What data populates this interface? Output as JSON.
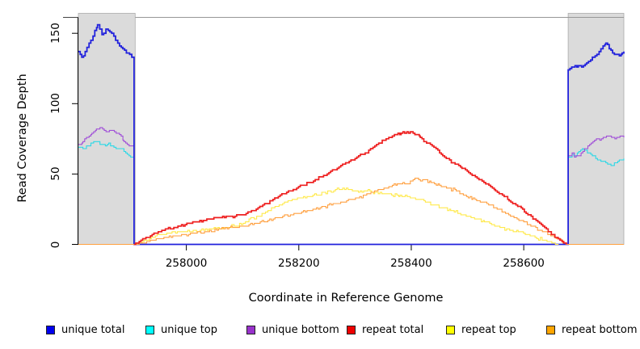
{
  "chart_data": {
    "type": "line",
    "title": "",
    "xlabel": "Coordinate in Reference Genome",
    "ylabel": "Read Coverage Depth",
    "x_ticks": [
      "258000",
      "258200",
      "258400",
      "258600"
    ],
    "x_tick_values": [
      258000,
      258200,
      258400,
      258600
    ],
    "y_ticks": [
      "0",
      "50",
      "100",
      "150"
    ],
    "y_tick_values": [
      0,
      50,
      100,
      150
    ],
    "xlim": [
      257808,
      258778
    ],
    "ylim": [
      0,
      164
    ],
    "grid": false,
    "legend_position": "bottom",
    "masked_regions": [
      {
        "start": 257808,
        "end": 257909
      },
      {
        "start": 258679,
        "end": 258778
      }
    ],
    "masked_region_color": "#dbdbdb",
    "masked_region_border_color": "#ababab",
    "frame_top_line_color": "#979797",
    "axis_color": "#000000",
    "series": [
      {
        "name": "unique total",
        "color": "#2222dc",
        "line_width": 1.8,
        "points": [
          [
            257808,
            137
          ],
          [
            257814,
            133
          ],
          [
            257820,
            137
          ],
          [
            257827,
            143
          ],
          [
            257834,
            148
          ],
          [
            257842,
            156
          ],
          [
            257846,
            153
          ],
          [
            257850,
            149
          ],
          [
            257853,
            150
          ],
          [
            257857,
            153
          ],
          [
            257861,
            152
          ],
          [
            257864,
            151
          ],
          [
            257871,
            148
          ],
          [
            257878,
            143
          ],
          [
            257887,
            139
          ],
          [
            257896,
            136
          ],
          [
            257903,
            133
          ],
          [
            257907,
            128
          ],
          [
            257907,
            0
          ],
          [
            258679,
            0
          ],
          [
            258679,
            124
          ],
          [
            258688,
            126
          ],
          [
            258697,
            127
          ],
          [
            258703,
            126
          ],
          [
            258712,
            129
          ],
          [
            258719,
            131
          ],
          [
            258727,
            134
          ],
          [
            258734,
            137
          ],
          [
            258741,
            141
          ],
          [
            258746,
            143
          ],
          [
            258752,
            139
          ],
          [
            258758,
            136
          ],
          [
            258764,
            135
          ],
          [
            258770,
            134
          ],
          [
            258775,
            136
          ],
          [
            258778,
            137
          ]
        ]
      },
      {
        "name": "unique top",
        "color": "#2cd8e6",
        "line_width": 1.1,
        "points": [
          [
            257808,
            69
          ],
          [
            257816,
            68
          ],
          [
            257824,
            70
          ],
          [
            257832,
            72
          ],
          [
            257840,
            73
          ],
          [
            257848,
            71
          ],
          [
            257856,
            70
          ],
          [
            257862,
            72
          ],
          [
            257868,
            70
          ],
          [
            257875,
            68
          ],
          [
            257882,
            68
          ],
          [
            257889,
            66
          ],
          [
            257895,
            64
          ],
          [
            257901,
            62
          ],
          [
            257907,
            61
          ],
          [
            257907,
            0
          ],
          [
            258679,
            0
          ],
          [
            258679,
            62
          ],
          [
            258686,
            64
          ],
          [
            258692,
            63
          ],
          [
            258698,
            66
          ],
          [
            258704,
            68
          ],
          [
            258710,
            67
          ],
          [
            258716,
            65
          ],
          [
            258722,
            63
          ],
          [
            258728,
            61
          ],
          [
            258734,
            60
          ],
          [
            258740,
            59
          ],
          [
            258746,
            58
          ],
          [
            258752,
            57
          ],
          [
            258758,
            56
          ],
          [
            258764,
            58
          ],
          [
            258770,
            60
          ],
          [
            258778,
            61
          ]
        ]
      },
      {
        "name": "unique bottom",
        "color": "#a04fd8",
        "line_width": 1.1,
        "points": [
          [
            257808,
            71
          ],
          [
            257816,
            73
          ],
          [
            257824,
            76
          ],
          [
            257832,
            79
          ],
          [
            257840,
            82
          ],
          [
            257848,
            83
          ],
          [
            257854,
            81
          ],
          [
            257860,
            80
          ],
          [
            257866,
            81
          ],
          [
            257872,
            80
          ],
          [
            257878,
            79
          ],
          [
            257884,
            77
          ],
          [
            257889,
            73
          ],
          [
            257895,
            71
          ],
          [
            257901,
            70
          ],
          [
            257907,
            68
          ],
          [
            257907,
            0
          ],
          [
            258679,
            0
          ],
          [
            258679,
            63
          ],
          [
            258686,
            65
          ],
          [
            258690,
            62
          ],
          [
            258696,
            63
          ],
          [
            258702,
            65
          ],
          [
            258708,
            68
          ],
          [
            258714,
            70
          ],
          [
            258720,
            72
          ],
          [
            258726,
            74
          ],
          [
            258732,
            75
          ],
          [
            258738,
            75
          ],
          [
            258744,
            76
          ],
          [
            258750,
            77
          ],
          [
            258756,
            76
          ],
          [
            258762,
            75
          ],
          [
            258768,
            76
          ],
          [
            258774,
            77
          ],
          [
            258778,
            76
          ]
        ]
      },
      {
        "name": "repeat total",
        "color": "#ee2020",
        "line_width": 1.7,
        "points": [
          [
            257907,
            0
          ],
          [
            257916,
            2
          ],
          [
            257925,
            4
          ],
          [
            257936,
            6
          ],
          [
            257950,
            9
          ],
          [
            257965,
            11
          ],
          [
            257985,
            13
          ],
          [
            258005,
            15
          ],
          [
            258030,
            17
          ],
          [
            258055,
            19
          ],
          [
            258080,
            20
          ],
          [
            258100,
            21
          ],
          [
            258118,
            24
          ],
          [
            258136,
            28
          ],
          [
            258154,
            32
          ],
          [
            258172,
            36
          ],
          [
            258190,
            39
          ],
          [
            258208,
            42
          ],
          [
            258226,
            45
          ],
          [
            258244,
            49
          ],
          [
            258262,
            53
          ],
          [
            258280,
            57
          ],
          [
            258300,
            61
          ],
          [
            258318,
            65
          ],
          [
            258332,
            69
          ],
          [
            258342,
            72
          ],
          [
            258352,
            74
          ],
          [
            258360,
            76
          ],
          [
            258370,
            78
          ],
          [
            258382,
            79
          ],
          [
            258392,
            80
          ],
          [
            258400,
            80
          ],
          [
            258408,
            78
          ],
          [
            258416,
            76
          ],
          [
            258424,
            73
          ],
          [
            258434,
            71
          ],
          [
            258444,
            68
          ],
          [
            258456,
            63
          ],
          [
            258468,
            60
          ],
          [
            258478,
            57
          ],
          [
            258490,
            54
          ],
          [
            258502,
            51
          ],
          [
            258514,
            48
          ],
          [
            258526,
            45
          ],
          [
            258538,
            42
          ],
          [
            258550,
            38
          ],
          [
            258562,
            35
          ],
          [
            258574,
            31
          ],
          [
            258586,
            28
          ],
          [
            258598,
            25
          ],
          [
            258610,
            21
          ],
          [
            258622,
            17
          ],
          [
            258634,
            13
          ],
          [
            258646,
            9
          ],
          [
            258658,
            5
          ],
          [
            258668,
            2
          ],
          [
            258676,
            0
          ]
        ]
      },
      {
        "name": "repeat top",
        "color": "#ffe94a",
        "line_width": 1.1,
        "points": [
          [
            257909,
            0
          ],
          [
            257925,
            3
          ],
          [
            257945,
            6
          ],
          [
            257965,
            8
          ],
          [
            257990,
            9
          ],
          [
            258015,
            10
          ],
          [
            258040,
            11
          ],
          [
            258065,
            12
          ],
          [
            258085,
            13
          ],
          [
            258105,
            16
          ],
          [
            258125,
            20
          ],
          [
            258145,
            24
          ],
          [
            258165,
            28
          ],
          [
            258185,
            31
          ],
          [
            258205,
            33
          ],
          [
            258225,
            35
          ],
          [
            258245,
            37
          ],
          [
            258262,
            38
          ],
          [
            258278,
            40
          ],
          [
            258292,
            39
          ],
          [
            258306,
            37
          ],
          [
            258320,
            38
          ],
          [
            258335,
            37
          ],
          [
            258350,
            36
          ],
          [
            258365,
            35
          ],
          [
            258380,
            35
          ],
          [
            258395,
            34
          ],
          [
            258410,
            32
          ],
          [
            258425,
            30
          ],
          [
            258440,
            28
          ],
          [
            258455,
            26
          ],
          [
            258470,
            24
          ],
          [
            258485,
            22
          ],
          [
            258500,
            20
          ],
          [
            258515,
            18
          ],
          [
            258530,
            16
          ],
          [
            258545,
            14
          ],
          [
            258560,
            12
          ],
          [
            258575,
            10
          ],
          [
            258590,
            9
          ],
          [
            258605,
            7
          ],
          [
            258620,
            5
          ],
          [
            258635,
            3
          ],
          [
            258650,
            1
          ],
          [
            258662,
            0
          ]
        ]
      },
      {
        "name": "repeat bottom",
        "color": "#ffa040",
        "line_width": 1.1,
        "points": [
          [
            257808,
            0
          ],
          [
            257907,
            0
          ],
          [
            257920,
            1
          ],
          [
            257940,
            3
          ],
          [
            257960,
            5
          ],
          [
            257985,
            6
          ],
          [
            258010,
            8
          ],
          [
            258035,
            9
          ],
          [
            258060,
            11
          ],
          [
            258085,
            12
          ],
          [
            258105,
            13
          ],
          [
            258125,
            15
          ],
          [
            258145,
            17
          ],
          [
            258165,
            19
          ],
          [
            258185,
            21
          ],
          [
            258205,
            23
          ],
          [
            258225,
            25
          ],
          [
            258245,
            27
          ],
          [
            258265,
            29
          ],
          [
            258285,
            31
          ],
          [
            258305,
            33
          ],
          [
            258325,
            36
          ],
          [
            258345,
            39
          ],
          [
            258360,
            41
          ],
          [
            258375,
            43
          ],
          [
            258385,
            44
          ],
          [
            258392,
            43
          ],
          [
            258400,
            45
          ],
          [
            258410,
            47
          ],
          [
            258420,
            46
          ],
          [
            258435,
            44
          ],
          [
            258450,
            42
          ],
          [
            258465,
            40
          ],
          [
            258480,
            38
          ],
          [
            258495,
            35
          ],
          [
            258510,
            33
          ],
          [
            258525,
            30
          ],
          [
            258540,
            28
          ],
          [
            258555,
            25
          ],
          [
            258570,
            22
          ],
          [
            258585,
            19
          ],
          [
            258600,
            16
          ],
          [
            258615,
            13
          ],
          [
            258630,
            10
          ],
          [
            258645,
            7
          ],
          [
            258660,
            4
          ],
          [
            258672,
            1
          ],
          [
            258679,
            0
          ],
          [
            258778,
            0
          ]
        ]
      }
    ]
  },
  "legend": {
    "items": [
      {
        "label": "unique total",
        "color": "#0000ee"
      },
      {
        "label": "unique top",
        "color": "#00ffff"
      },
      {
        "label": "unique bottom",
        "color": "#9932cc"
      },
      {
        "label": "repeat total",
        "color": "#ee0000"
      },
      {
        "label": "repeat top",
        "color": "#ffff00"
      },
      {
        "label": "repeat bottom",
        "color": "#ffa500"
      }
    ]
  }
}
